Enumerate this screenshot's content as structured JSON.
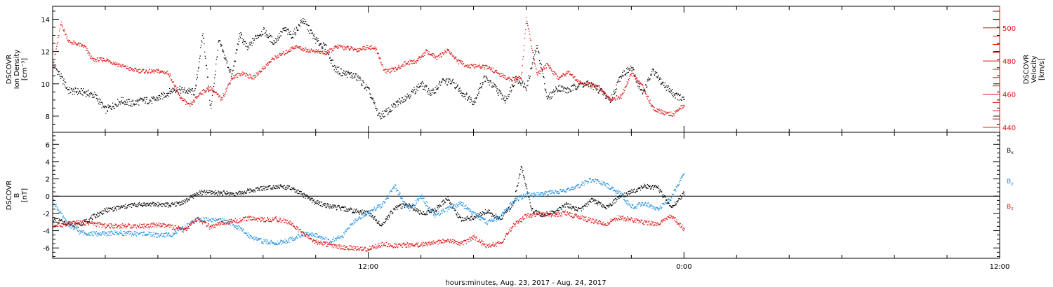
{
  "chart_data": [
    {
      "type": "scatter",
      "panel": "top",
      "ylabel_lines": [
        "DSCOVR",
        "Ion Density"
      ],
      "yunit": "[cm⁻³]",
      "ylim": [
        7.0,
        14.8
      ],
      "yticks": [
        8,
        10,
        12,
        14
      ],
      "y2label_lines": [
        "DSCOVR",
        "Velocity"
      ],
      "y2unit": "[km/s]",
      "y2lim": [
        437,
        513
      ],
      "y2ticks": [
        440,
        460,
        480,
        500
      ],
      "colors": {
        "density": "#000000",
        "velocity": "#dd1111"
      },
      "series": [
        {
          "axis": "left",
          "color": "#000000",
          "x": [
            0.0,
            0.6,
            1.2,
            1.6,
            2.0,
            2.6,
            3.0,
            3.4,
            3.8,
            4.2,
            4.6,
            5.0,
            5.4,
            5.7,
            6.0,
            6.3,
            6.8,
            7.1,
            7.4,
            7.7,
            8.0,
            8.4,
            8.8,
            9.1,
            9.5,
            10.0,
            10.4,
            10.7,
            11.0,
            11.3,
            11.6,
            12.0,
            12.4,
            12.8,
            13.2,
            13.6,
            14.0,
            14.4,
            14.8,
            15.2,
            15.6,
            16.0,
            16.4,
            16.8,
            17.2,
            17.6,
            18.0,
            18.4,
            18.8,
            19.2,
            19.6,
            20.0,
            20.4,
            20.8,
            21.2,
            21.6,
            22.0,
            22.4,
            22.8,
            23.2,
            23.6,
            24.0
          ],
          "y": [
            11.3,
            9.6,
            9.5,
            9.3,
            8.4,
            9.0,
            8.8,
            9.0,
            9.0,
            9.3,
            9.7,
            9.6,
            9.5,
            13.2,
            8.4,
            12.7,
            10.5,
            13.1,
            12.2,
            12.9,
            13.3,
            12.6,
            13.4,
            13.0,
            14.0,
            12.7,
            12.2,
            11.0,
            10.7,
            10.6,
            10.4,
            9.6,
            8.0,
            8.4,
            9.0,
            9.4,
            10.0,
            9.4,
            10.2,
            10.1,
            9.4,
            8.9,
            10.4,
            9.8,
            9.0,
            10.4,
            9.8,
            12.4,
            9.1,
            9.8,
            9.6,
            10.0,
            10.0,
            9.6,
            9.0,
            10.6,
            11.0,
            9.4,
            10.8,
            10.0,
            9.4,
            9.0
          ]
        },
        {
          "axis": "right",
          "color": "#dd1111",
          "x": [
            0.0,
            0.3,
            0.6,
            1.0,
            1.2,
            1.5,
            2.0,
            2.5,
            3.0,
            3.5,
            4.0,
            4.4,
            4.8,
            5.2,
            5.6,
            6.0,
            6.4,
            6.8,
            7.2,
            7.6,
            8.0,
            8.4,
            8.8,
            9.2,
            9.6,
            10.0,
            10.4,
            10.8,
            11.2,
            11.6,
            12.0,
            12.3,
            12.6,
            13.0,
            13.4,
            13.8,
            14.2,
            14.6,
            15.0,
            15.4,
            15.8,
            16.2,
            16.6,
            17.0,
            17.4,
            17.8,
            18.0,
            18.4,
            18.8,
            19.2,
            19.6,
            20.0,
            20.4,
            20.8,
            21.2,
            21.6,
            22.0,
            22.4,
            22.8,
            23.2,
            23.6,
            24.0
          ],
          "y": [
            477,
            503,
            492,
            490,
            489,
            481,
            481,
            478,
            475,
            474,
            474,
            473,
            459,
            453,
            461,
            464,
            457,
            470,
            473,
            470,
            476,
            482,
            485,
            489,
            487,
            486,
            485,
            489,
            488,
            487,
            489,
            487,
            474,
            475,
            479,
            480,
            486,
            482,
            487,
            480,
            477,
            477,
            476,
            472,
            469,
            470,
            506,
            472,
            478,
            470,
            474,
            467,
            466,
            464,
            457,
            459,
            473,
            465,
            452,
            449,
            448,
            454
          ]
        }
      ]
    },
    {
      "type": "scatter",
      "panel": "bottom",
      "ylabel_lines": [
        "DSCOVR",
        "B"
      ],
      "yunit": "[nT]",
      "ylim": [
        -7.2,
        7.4
      ],
      "yticks": [
        -6,
        -4,
        -2,
        0,
        2,
        4,
        6
      ],
      "zero_line": true,
      "series": [
        {
          "name": "Bx",
          "color": "#000000",
          "x": [
            0.0,
            0.5,
            1.0,
            1.5,
            2.0,
            2.5,
            3.0,
            3.5,
            4.0,
            4.5,
            5.0,
            5.5,
            6.0,
            6.5,
            7.0,
            7.5,
            8.0,
            8.5,
            9.0,
            9.5,
            10.0,
            10.5,
            11.0,
            11.5,
            12.0,
            12.5,
            13.0,
            13.5,
            14.0,
            14.5,
            15.0,
            15.5,
            16.0,
            16.5,
            17.0,
            17.5,
            17.8,
            18.2,
            18.6,
            19.0,
            19.5,
            20.0,
            20.5,
            21.0,
            21.5,
            22.0,
            22.5,
            23.0,
            23.5,
            24.0
          ],
          "y": [
            -2.6,
            -3.1,
            -3.3,
            -2.4,
            -1.6,
            -1.3,
            -1.0,
            -0.9,
            -0.9,
            -1.0,
            -0.6,
            0.4,
            0.5,
            0.4,
            0.3,
            0.7,
            1.0,
            1.2,
            1.0,
            0.2,
            -0.7,
            -1.1,
            -1.4,
            -1.7,
            -1.9,
            -3.3,
            -1.3,
            -0.9,
            -2.0,
            -1.6,
            -0.2,
            -2.7,
            -2.4,
            -1.7,
            -2.6,
            -0.9,
            3.5,
            -1.6,
            -2.1,
            -1.9,
            -0.9,
            -1.6,
            -0.4,
            -1.3,
            -0.2,
            0.6,
            1.2,
            1.0,
            -1.3,
            0.4
          ]
        },
        {
          "name": "By",
          "color": "#1f8fe0",
          "x": [
            0.0,
            0.5,
            1.0,
            1.5,
            2.0,
            2.5,
            3.0,
            3.5,
            4.0,
            4.5,
            5.0,
            5.5,
            6.0,
            6.5,
            7.0,
            7.5,
            8.0,
            8.5,
            9.0,
            9.5,
            10.0,
            10.5,
            11.0,
            11.5,
            12.0,
            12.5,
            13.0,
            13.5,
            14.0,
            14.5,
            15.0,
            15.5,
            16.0,
            16.5,
            17.0,
            17.5,
            18.0,
            18.5,
            19.0,
            19.5,
            20.0,
            20.5,
            21.0,
            21.5,
            22.0,
            22.5,
            23.0,
            23.5,
            24.0
          ],
          "y": [
            -0.5,
            -3.0,
            -4.1,
            -4.3,
            -4.3,
            -4.2,
            -4.3,
            -4.3,
            -4.5,
            -4.4,
            -3.6,
            -2.6,
            -2.7,
            -2.8,
            -3.5,
            -4.6,
            -5.2,
            -5.4,
            -5.0,
            -4.4,
            -4.4,
            -5.2,
            -4.6,
            -2.7,
            -1.8,
            -1.0,
            1.2,
            -1.6,
            0.0,
            -2.2,
            -1.4,
            -0.8,
            -2.0,
            -3.0,
            -2.4,
            -0.5,
            0.2,
            0.2,
            0.5,
            0.7,
            1.3,
            2.0,
            1.4,
            0.5,
            -1.2,
            -0.8,
            -1.4,
            -0.2,
            2.9
          ]
        },
        {
          "name": "Bz",
          "color": "#dd1111",
          "x": [
            0.0,
            0.5,
            1.0,
            1.5,
            2.0,
            2.5,
            3.0,
            3.5,
            4.0,
            4.5,
            5.0,
            5.5,
            6.0,
            6.5,
            7.0,
            7.5,
            8.0,
            8.5,
            9.0,
            9.5,
            10.0,
            10.5,
            11.0,
            11.5,
            12.0,
            12.5,
            13.0,
            13.5,
            14.0,
            14.5,
            15.0,
            15.5,
            16.0,
            16.5,
            17.0,
            17.5,
            18.0,
            18.5,
            19.0,
            19.5,
            20.0,
            20.5,
            21.0,
            21.5,
            22.0,
            22.5,
            23.0,
            23.5,
            24.0
          ],
          "y": [
            -3.4,
            -3.2,
            -3.0,
            -3.1,
            -3.4,
            -3.4,
            -3.4,
            -3.4,
            -3.3,
            -3.5,
            -3.9,
            -2.6,
            -3.6,
            -3.0,
            -2.8,
            -2.5,
            -2.7,
            -2.6,
            -3.0,
            -4.3,
            -5.3,
            -5.6,
            -5.9,
            -6.0,
            -6.1,
            -5.5,
            -5.7,
            -5.6,
            -5.6,
            -5.3,
            -5.1,
            -5.5,
            -4.7,
            -5.8,
            -5.4,
            -3.4,
            -2.2,
            -2.0,
            -2.2,
            -1.9,
            -2.4,
            -2.8,
            -3.2,
            -2.4,
            -2.7,
            -3.0,
            -3.2,
            -2.2,
            -3.8
          ]
        }
      ],
      "legend": [
        "Bx",
        "By",
        "Bz"
      ]
    }
  ],
  "xaxis": {
    "label": "hours:minutes, Aug. 23, 2017 - Aug. 24, 2017",
    "range": [
      0,
      36
    ],
    "ticks": [
      {
        "x": 12,
        "label": "12:00"
      },
      {
        "x": 24,
        "label": "0:00"
      },
      {
        "x": 36,
        "label": "12:00"
      }
    ]
  }
}
